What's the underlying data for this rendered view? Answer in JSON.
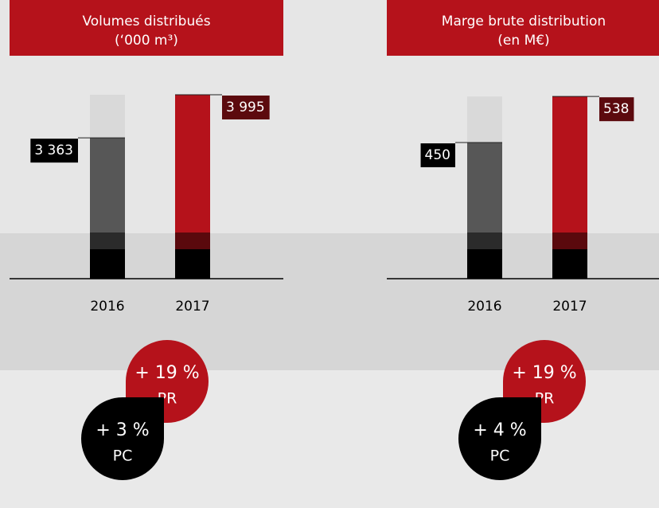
{
  "chart_data": [
    {
      "type": "bar",
      "title": "Volumes distribués",
      "subtitle": "(‘000 m³)",
      "categories": [
        "2016",
        "2017"
      ],
      "values": [
        3363,
        3995
      ],
      "value_labels": [
        "3 363",
        "3 995"
      ],
      "colors": [
        "#575757",
        "#b5121b"
      ],
      "label_colors": [
        "#000000",
        "#5c0a0e"
      ],
      "ylim": [
        1300,
        4100
      ],
      "badges": [
        {
          "text": "+ 19 %",
          "label": "PR",
          "color": "#b5121b"
        },
        {
          "text": "+ 3 %",
          "label": "PC",
          "color": "#000000"
        }
      ]
    },
    {
      "type": "bar",
      "title": "Marge brute distribution",
      "subtitle": "(en M€)",
      "categories": [
        "2016",
        "2017"
      ],
      "values": [
        450,
        538
      ],
      "value_labels": [
        "450",
        "538"
      ],
      "colors": [
        "#575757",
        "#b5121b"
      ],
      "label_colors": [
        "#000000",
        "#5c0a0e"
      ],
      "ylim": [
        190,
        555
      ],
      "badges": [
        {
          "text": "+ 19 %",
          "label": "PR",
          "color": "#b5121b"
        },
        {
          "text": "+ 4 %",
          "label": "PC",
          "color": "#000000"
        }
      ]
    }
  ]
}
